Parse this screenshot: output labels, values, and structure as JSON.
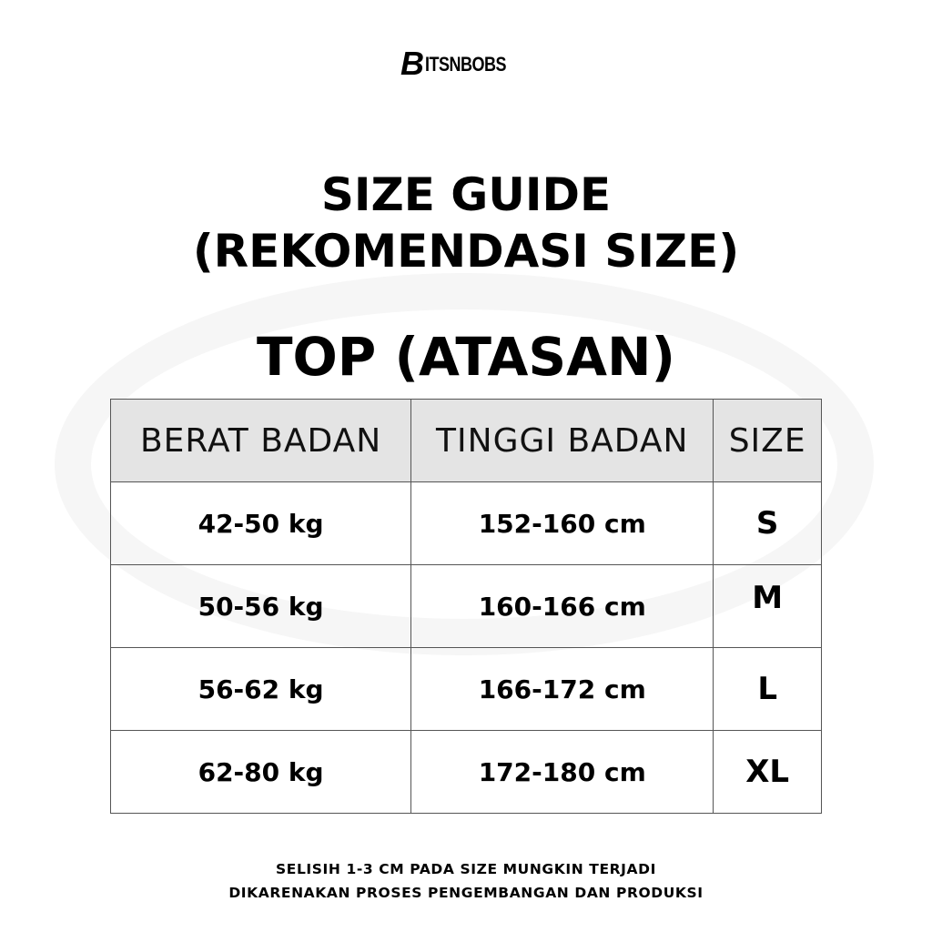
{
  "logo": {
    "mark": "B",
    "text": "ITSNBOBS"
  },
  "title_line1": "SIZE GUIDE",
  "title_line2": "(REKOMENDASI SIZE)",
  "section_title": "TOP (ATASAN)",
  "table": {
    "headers": [
      "BERAT BADAN",
      "TINGGI BADAN",
      "SIZE"
    ],
    "rows": [
      [
        "42-50 kg",
        "152-160 cm",
        "S"
      ],
      [
        "50-56 kg",
        "160-166 cm",
        "M"
      ],
      [
        "56-62 kg",
        "166-172 cm",
        "L"
      ],
      [
        "62-80 kg",
        "172-180 cm",
        "XL"
      ]
    ]
  },
  "note": {
    "line1": "SELISIH 1-3 CM PADA SIZE MUNGKIN TERJADI",
    "line2": "DIKARENAKAN PROSES PENGEMBANGAN DAN PRODUKSI"
  }
}
